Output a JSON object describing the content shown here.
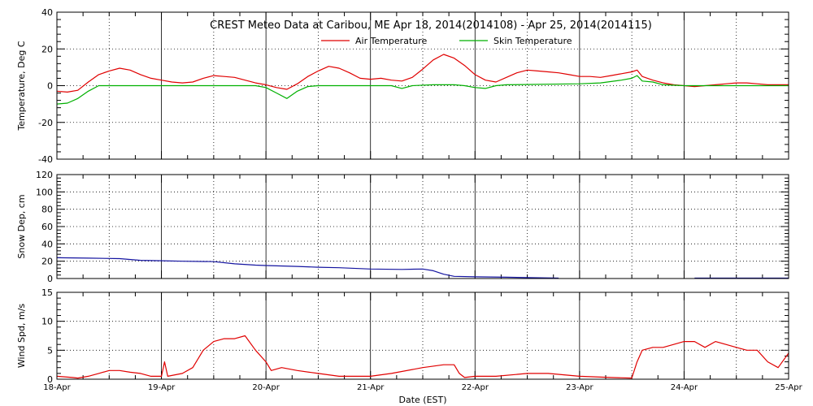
{
  "chart_data": [
    {
      "type": "line",
      "title": "CREST Meteo Data at Caribou, ME   Apr 18, 2014(2014108) - Apr 25, 2014(2014115)",
      "ylabel": "Temperature, Deg C",
      "ylim": [
        -40,
        40
      ],
      "yticks": [
        "40",
        "20",
        "0",
        "-20",
        "-40"
      ],
      "yminor": 5,
      "xlim": [
        0,
        7
      ],
      "grid": true,
      "legend": "top-center",
      "series": [
        {
          "name": "Air Temperature",
          "color": "#e00000",
          "x": [
            0,
            0.1,
            0.2,
            0.3,
            0.4,
            0.5,
            0.6,
            0.7,
            0.8,
            0.9,
            1.0,
            1.1,
            1.2,
            1.3,
            1.4,
            1.5,
            1.6,
            1.7,
            1.8,
            1.9,
            2.0,
            2.1,
            2.2,
            2.3,
            2.4,
            2.5,
            2.6,
            2.7,
            2.8,
            2.9,
            3.0,
            3.1,
            3.2,
            3.3,
            3.4,
            3.5,
            3.6,
            3.7,
            3.8,
            3.9,
            4.0,
            4.1,
            4.2,
            4.3,
            4.4,
            4.5,
            4.6,
            4.7,
            4.8,
            4.9,
            5.0,
            5.1,
            5.2,
            5.3,
            5.4,
            5.5,
            5.55,
            5.6,
            5.7,
            5.8,
            5.9,
            6.0,
            6.1,
            6.2,
            6.3,
            6.4,
            6.5,
            6.6,
            6.7,
            6.8,
            6.9,
            7.0
          ],
          "y": [
            -3,
            -3.5,
            -2.5,
            2,
            6,
            8,
            9.5,
            8.5,
            6,
            4,
            3,
            2,
            1.5,
            2,
            4,
            5.5,
            5,
            4.5,
            3,
            1.5,
            0.5,
            -1,
            -2,
            1,
            5,
            8,
            10.5,
            9.5,
            7,
            4,
            3.5,
            4,
            3,
            2.5,
            4.5,
            9,
            14,
            17,
            15,
            11,
            6,
            3,
            2,
            4.5,
            7,
            8.5,
            8,
            7.5,
            7,
            6,
            5,
            5,
            4.5,
            5.5,
            6.5,
            7.5,
            8.5,
            5,
            3,
            1.5,
            0.5,
            0,
            -0.5,
            0,
            0.5,
            1,
            1.5,
            1.5,
            1,
            0.5,
            0.5,
            0.5
          ]
        },
        {
          "name": "Skin Temperature",
          "color": "#00b000",
          "x": [
            0,
            0.1,
            0.2,
            0.3,
            0.4,
            0.5,
            1.0,
            1.5,
            1.9,
            2.0,
            2.1,
            2.2,
            2.3,
            2.4,
            2.5,
            3.0,
            3.2,
            3.3,
            3.4,
            3.6,
            3.8,
            3.9,
            4.0,
            4.1,
            4.2,
            4.3,
            5.0,
            5.2,
            5.4,
            5.5,
            5.55,
            5.6,
            5.7,
            5.8,
            6.0,
            6.5,
            7.0
          ],
          "y": [
            -10,
            -9.5,
            -7,
            -3,
            0,
            0,
            0,
            0,
            0,
            -1,
            -4,
            -7,
            -3,
            -0.5,
            0,
            0,
            0,
            -1.5,
            0,
            0.5,
            0.5,
            0,
            -1,
            -1.5,
            0,
            0.5,
            1,
            1.5,
            3,
            4,
            5.5,
            2.5,
            2,
            0.5,
            0,
            0,
            0
          ]
        }
      ]
    },
    {
      "type": "line",
      "ylabel": "Snow Dep, cm",
      "ylim": [
        0,
        120
      ],
      "yticks": [
        "120",
        "100",
        "80",
        "60",
        "40",
        "20",
        "0"
      ],
      "yminor": 5,
      "xlim": [
        0,
        7
      ],
      "grid": true,
      "series": [
        {
          "color": "#1414a0",
          "x": [
            0,
            0.3,
            0.6,
            0.8,
            1.0,
            1.2,
            1.5,
            1.7,
            1.9,
            2.0,
            2.3,
            2.5,
            2.7,
            3.0,
            3.3,
            3.5,
            3.6,
            3.7,
            3.8,
            4.0,
            4.3,
            4.5,
            4.8,
            5.0,
            5.5,
            5.8,
            6.1,
            6.5,
            6.9,
            7.0
          ],
          "y": [
            24,
            23.5,
            23,
            21,
            20.5,
            20,
            19.5,
            17,
            15.5,
            15,
            14,
            13,
            12.5,
            11,
            10.5,
            11,
            9,
            5,
            2.5,
            2,
            1.5,
            1,
            0.5,
            null,
            null,
            null,
            0.5,
            0.5,
            0.5,
            0.5
          ]
        }
      ]
    },
    {
      "type": "line",
      "ylabel": "Wind Spd, m/s",
      "xlabel": "Date (EST)",
      "ylim": [
        0,
        15
      ],
      "yticks": [
        "15",
        "10",
        "5",
        "0"
      ],
      "yminor": 5,
      "xlim": [
        0,
        7
      ],
      "xticks": [
        "18-Apr",
        "19-Apr",
        "20-Apr",
        "21-Apr",
        "22-Apr",
        "23-Apr",
        "24-Apr",
        "25-Apr"
      ],
      "grid": true,
      "series": [
        {
          "color": "#e00000",
          "x": [
            0,
            0.15,
            0.2,
            0.3,
            0.4,
            0.5,
            0.6,
            0.7,
            0.8,
            0.9,
            1.0,
            1.03,
            1.06,
            1.2,
            1.3,
            1.4,
            1.5,
            1.6,
            1.7,
            1.8,
            1.9,
            2.0,
            2.05,
            2.15,
            2.3,
            2.5,
            2.7,
            2.9,
            3.0,
            3.2,
            3.5,
            3.7,
            3.8,
            3.85,
            3.9,
            4.0,
            4.2,
            4.5,
            4.7,
            5.0,
            5.3,
            5.5,
            5.55,
            5.6,
            5.7,
            5.8,
            5.9,
            6.0,
            6.1,
            6.2,
            6.3,
            6.4,
            6.5,
            6.6,
            6.7,
            6.8,
            6.9,
            7.0
          ],
          "y": [
            0.5,
            0.3,
            0.2,
            0.5,
            1,
            1.5,
            1.5,
            1.2,
            1,
            0.5,
            0.5,
            3,
            0.5,
            1,
            2,
            5,
            6.5,
            7,
            7,
            7.5,
            5,
            3,
            1.5,
            2,
            1.5,
            1,
            0.5,
            0.5,
            0.5,
            1,
            2,
            2.5,
            2.5,
            1,
            0.3,
            0.5,
            0.5,
            1,
            1,
            0.5,
            0.3,
            0.2,
            3,
            5,
            5.5,
            5.5,
            6,
            6.5,
            6.5,
            5.5,
            6.5,
            6,
            5.5,
            5,
            5,
            3,
            2,
            4.5
          ]
        }
      ]
    }
  ]
}
